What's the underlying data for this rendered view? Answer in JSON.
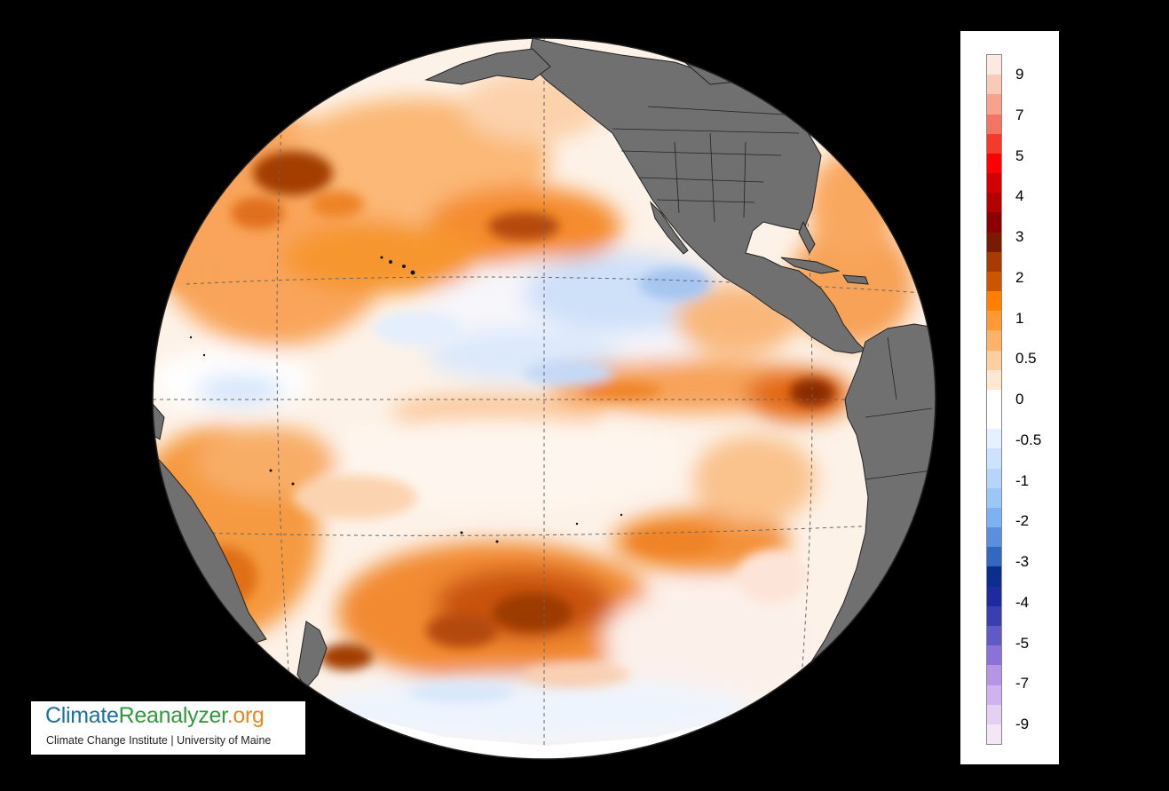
{
  "map": {
    "projection": "orthographic",
    "variable": "sea surface temperature anomaly",
    "land_color": "#707070",
    "ice_color": "#ffffff",
    "graticule": "dashed"
  },
  "legend": {
    "tick_labels": [
      "9",
      "7",
      "5",
      "4",
      "3",
      "2",
      "1",
      "0.5",
      "0",
      "-0.5",
      "-1",
      "-2",
      "-3",
      "-4",
      "-5",
      "-7",
      "-9"
    ],
    "swatches": [
      "#fde9e4",
      "#fbc9b7",
      "#f8a18f",
      "#f27465",
      "#f53a2c",
      "#ff0000",
      "#d40000",
      "#b30000",
      "#8b0000",
      "#7a1a00",
      "#a83c00",
      "#cc5500",
      "#ff7f00",
      "#ff9933",
      "#ffb266",
      "#fed0a0",
      "#ffe8d0",
      "#ffffff",
      "#ffffff",
      "#e5f1ff",
      "#cde3fd",
      "#b5d6fb",
      "#9bc7f7",
      "#7fb0f0",
      "#5b8edd",
      "#3566c2",
      "#0b2d8f",
      "#1f2a9e",
      "#3a3fb0",
      "#6159c5",
      "#8a72d6",
      "#b595e6",
      "#cfb3ee",
      "#e3d0f2",
      "#f3e6f7"
    ]
  },
  "logo": {
    "part1": "Climate",
    "part2": "Reanalyzer",
    "part3": ".org",
    "subtitle": "Climate Change Institute | University of Maine"
  }
}
